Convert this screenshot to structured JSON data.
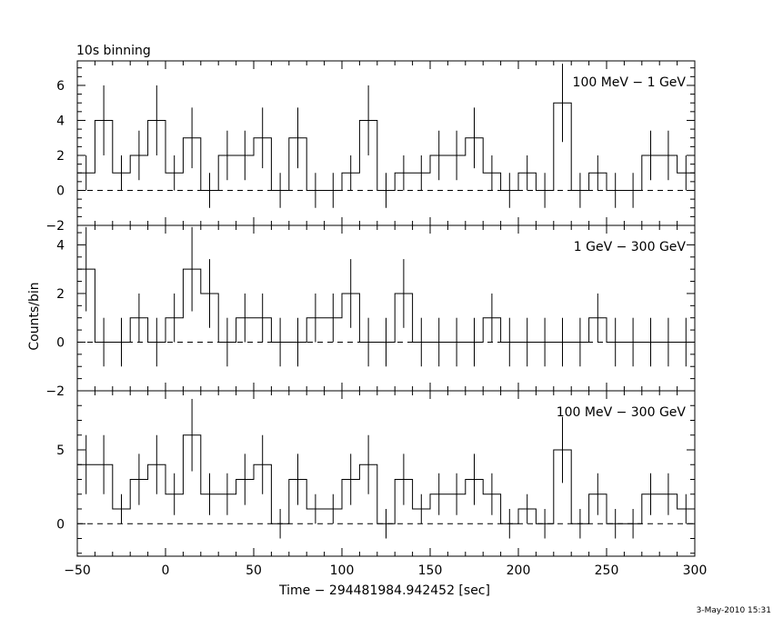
{
  "chart_data": [
    {
      "type": "line",
      "title": "10s binning",
      "annotation": "100 MeV − 1 GeV",
      "ylabel": "",
      "xlim": [
        -50,
        300
      ],
      "ylim": [
        -2,
        7.4
      ],
      "yticks": [
        -2,
        0,
        2,
        4,
        6
      ],
      "x": [
        -45,
        -35,
        -25,
        -15,
        -5,
        5,
        15,
        25,
        35,
        45,
        55,
        65,
        75,
        85,
        95,
        105,
        115,
        125,
        135,
        145,
        155,
        165,
        175,
        185,
        195,
        205,
        215,
        225,
        235,
        245,
        255,
        265,
        275,
        285,
        295
      ],
      "values": [
        1,
        4,
        1,
        2,
        4,
        1,
        3,
        0,
        2,
        2,
        3,
        0,
        3,
        0,
        0,
        1,
        4,
        0,
        1,
        1,
        2,
        2,
        3,
        1,
        0,
        1,
        0,
        5,
        0,
        1,
        0,
        0,
        2,
        2,
        1
      ]
    },
    {
      "type": "line",
      "title": "",
      "annotation": "1 GeV − 300 GeV",
      "ylabel": "Counts/bin",
      "xlim": [
        -50,
        300
      ],
      "ylim": [
        -2,
        4.8
      ],
      "yticks": [
        -2,
        0,
        2,
        4
      ],
      "x": [
        -45,
        -35,
        -25,
        -15,
        -5,
        5,
        15,
        25,
        35,
        45,
        55,
        65,
        75,
        85,
        95,
        105,
        115,
        125,
        135,
        145,
        155,
        165,
        175,
        185,
        195,
        205,
        215,
        225,
        235,
        245,
        255,
        265,
        275,
        285,
        295
      ],
      "values": [
        3,
        0,
        0,
        1,
        0,
        1,
        3,
        2,
        0,
        1,
        1,
        0,
        0,
        1,
        1,
        2,
        0,
        0,
        2,
        0,
        0,
        0,
        0,
        1,
        0,
        0,
        0,
        0,
        0,
        1,
        0,
        0,
        0,
        0,
        0
      ]
    },
    {
      "type": "line",
      "title": "",
      "annotation": "100 MeV − 300 GeV",
      "ylabel": "",
      "xlabel": "Time − 294481984.942452 [sec]",
      "xlim": [
        -50,
        300
      ],
      "ylim": [
        -2.2,
        9
      ],
      "yticks": [
        0,
        5
      ],
      "xticks": [
        -50,
        0,
        50,
        100,
        150,
        200,
        250,
        300
      ],
      "x": [
        -45,
        -35,
        -25,
        -15,
        -5,
        5,
        15,
        25,
        35,
        45,
        55,
        65,
        75,
        85,
        95,
        105,
        115,
        125,
        135,
        145,
        155,
        165,
        175,
        185,
        195,
        205,
        215,
        225,
        235,
        245,
        255,
        265,
        275,
        285,
        295
      ],
      "values": [
        4,
        4,
        1,
        3,
        4,
        2,
        6,
        2,
        2,
        3,
        4,
        0,
        3,
        1,
        1,
        3,
        4,
        0,
        3,
        1,
        2,
        2,
        3,
        2,
        0,
        1,
        0,
        5,
        0,
        2,
        0,
        0,
        2,
        2,
        1
      ]
    }
  ],
  "footer": {
    "timestamp": "3-May-2010 15:31"
  }
}
